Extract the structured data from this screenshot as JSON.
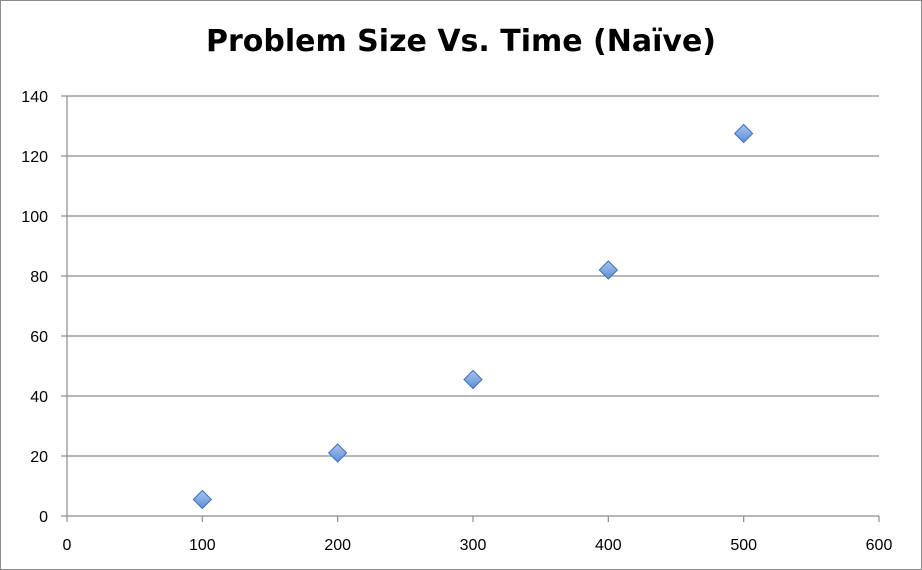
{
  "chart_data": {
    "type": "scatter",
    "title": "Problem Size Vs. Time (Naïve)",
    "xlabel": "",
    "ylabel": "",
    "xlim": [
      0,
      600
    ],
    "ylim": [
      0,
      140
    ],
    "x_ticks": [
      "0",
      "100",
      "200",
      "300",
      "400",
      "500",
      "600"
    ],
    "y_ticks": [
      "0",
      "20",
      "40",
      "60",
      "80",
      "100",
      "120",
      "140"
    ],
    "grid": "horizontal",
    "legend": "none",
    "marker": "diamond",
    "marker_color": "#5b8fd6",
    "series": [
      {
        "x": [
          100,
          200,
          300,
          400,
          500
        ],
        "y": [
          5.5,
          21,
          45.5,
          82,
          127.5
        ]
      }
    ]
  }
}
